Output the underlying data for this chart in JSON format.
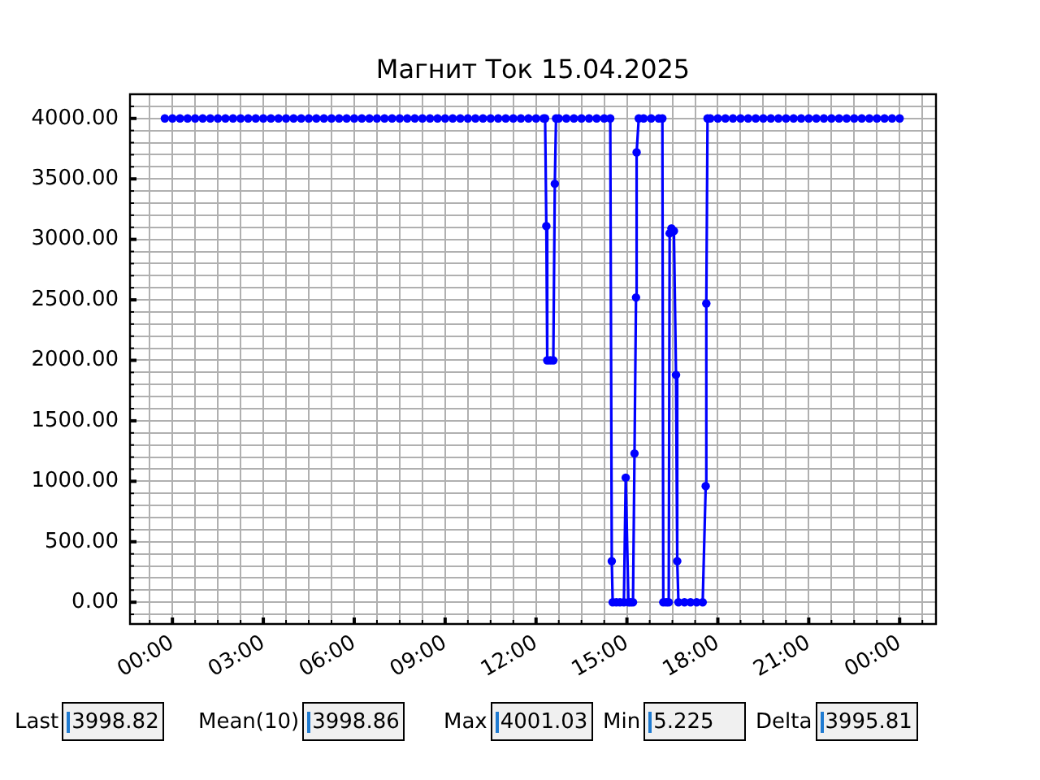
{
  "chart_data": {
    "type": "line",
    "title": "Магнит Ток 15.04.2025",
    "x": [
      -0.25,
      0,
      0.25,
      0.5,
      0.75,
      1,
      1.25,
      1.5,
      1.75,
      2,
      2.25,
      2.5,
      2.75,
      3,
      3.25,
      3.5,
      3.75,
      4,
      4.25,
      4.5,
      4.75,
      5,
      5.25,
      5.5,
      5.75,
      6,
      6.25,
      6.5,
      6.75,
      7,
      7.25,
      7.5,
      7.75,
      8,
      8.25,
      8.5,
      8.75,
      9,
      9.25,
      9.5,
      9.75,
      10,
      10.25,
      10.5,
      10.75,
      11,
      11.25,
      11.5,
      11.75,
      12,
      12.25,
      12.3,
      12.34,
      12.37,
      12.47,
      12.57,
      12.62,
      12.66,
      12.75,
      13,
      13.25,
      13.5,
      13.75,
      14,
      14.25,
      14.45,
      14.5,
      14.53,
      14.65,
      14.77,
      14.9,
      14.96,
      15.05,
      15.12,
      15.2,
      15.25,
      15.3,
      15.32,
      15.39,
      15.55,
      15.8,
      16.05,
      16.17,
      16.2,
      16.3,
      16.38,
      16.41,
      16.47,
      16.55,
      16.62,
      16.66,
      16.7,
      16.9,
      17.1,
      17.3,
      17.5,
      17.6,
      17.62,
      17.66,
      17.75,
      18,
      18.25,
      18.5,
      18.75,
      19,
      19.25,
      19.5,
      19.75,
      20,
      20.25,
      20.5,
      20.75,
      21,
      21.25,
      21.5,
      21.75,
      22,
      22.25,
      22.5,
      22.75,
      23,
      23.25,
      23.5,
      23.75,
      24
    ],
    "values": [
      4000,
      4000,
      4000,
      4000,
      4000,
      4000,
      4000,
      4000,
      4000,
      4000,
      4000,
      4000,
      4000,
      4000,
      4000,
      4000,
      4000,
      4000,
      4000,
      4000,
      4000,
      4000,
      4000,
      4000,
      4000,
      4000,
      4000,
      4000,
      4000,
      4000,
      4000,
      4000,
      4000,
      4000,
      4000,
      4000,
      4000,
      4000,
      4000,
      4000,
      4000,
      4000,
      4000,
      4000,
      4000,
      4000,
      4000,
      4000,
      4000,
      4000,
      4000,
      4000,
      3110,
      2000,
      2000,
      2000,
      3460,
      4000,
      4000,
      4000,
      4000,
      4000,
      4000,
      4000,
      4000,
      4000,
      340,
      0,
      0,
      0,
      0,
      1030,
      0,
      0,
      0,
      1230,
      2520,
      3720,
      4000,
      4000,
      4000,
      4000,
      4000,
      0,
      0,
      0,
      3050,
      3090,
      3070,
      1880,
      340,
      0,
      0,
      0,
      0,
      0,
      960,
      2470,
      4000,
      4000,
      4000,
      4000,
      4000,
      4000,
      4000,
      4000,
      4000,
      4000,
      4000,
      4000,
      4000,
      4000,
      4000,
      4000,
      4000,
      4000,
      4000,
      4000,
      4000,
      4000,
      4000,
      4000,
      4000,
      4000,
      4000
    ],
    "color": "#0000ff",
    "marker": "circle",
    "grid": true,
    "xlim": [
      -1.4,
      25.2
    ],
    "ylim": [
      -180,
      4200
    ],
    "xticks": [
      {
        "value": -0.75,
        "label": null
      },
      {
        "value": 0,
        "label": "00:00"
      },
      {
        "value": 0.75,
        "label": null
      },
      {
        "value": 1.5,
        "label": null
      },
      {
        "value": 2.25,
        "label": null
      },
      {
        "value": 3,
        "label": "03:00"
      },
      {
        "value": 3.75,
        "label": null
      },
      {
        "value": 4.5,
        "label": null
      },
      {
        "value": 5.25,
        "label": null
      },
      {
        "value": 6,
        "label": "06:00"
      },
      {
        "value": 6.75,
        "label": null
      },
      {
        "value": 7.5,
        "label": null
      },
      {
        "value": 8.25,
        "label": null
      },
      {
        "value": 9,
        "label": "09:00"
      },
      {
        "value": 9.75,
        "label": null
      },
      {
        "value": 10.5,
        "label": null
      },
      {
        "value": 11.25,
        "label": null
      },
      {
        "value": 12,
        "label": "12:00"
      },
      {
        "value": 12.75,
        "label": null
      },
      {
        "value": 13.5,
        "label": null
      },
      {
        "value": 14.25,
        "label": null
      },
      {
        "value": 15,
        "label": "15:00"
      },
      {
        "value": 15.75,
        "label": null
      },
      {
        "value": 16.5,
        "label": null
      },
      {
        "value": 17.25,
        "label": null
      },
      {
        "value": 18,
        "label": "18:00"
      },
      {
        "value": 18.75,
        "label": null
      },
      {
        "value": 19.5,
        "label": null
      },
      {
        "value": 20.25,
        "label": null
      },
      {
        "value": 21,
        "label": "21:00"
      },
      {
        "value": 21.75,
        "label": null
      },
      {
        "value": 22.5,
        "label": null
      },
      {
        "value": 23.25,
        "label": null
      },
      {
        "value": 24,
        "label": "00:00"
      },
      {
        "value": 24.75,
        "label": null
      }
    ],
    "yticks": [
      {
        "value": -100,
        "label": null
      },
      {
        "value": 0,
        "label": "0.00"
      },
      {
        "value": 100,
        "label": null
      },
      {
        "value": 200,
        "label": null
      },
      {
        "value": 300,
        "label": null
      },
      {
        "value": 400,
        "label": null
      },
      {
        "value": 500,
        "label": "500.00"
      },
      {
        "value": 600,
        "label": null
      },
      {
        "value": 700,
        "label": null
      },
      {
        "value": 800,
        "label": null
      },
      {
        "value": 900,
        "label": null
      },
      {
        "value": 1000,
        "label": "1000.00"
      },
      {
        "value": 1100,
        "label": null
      },
      {
        "value": 1200,
        "label": null
      },
      {
        "value": 1300,
        "label": null
      },
      {
        "value": 1400,
        "label": null
      },
      {
        "value": 1500,
        "label": "1500.00"
      },
      {
        "value": 1600,
        "label": null
      },
      {
        "value": 1700,
        "label": null
      },
      {
        "value": 1800,
        "label": null
      },
      {
        "value": 1900,
        "label": null
      },
      {
        "value": 2000,
        "label": "2000.00"
      },
      {
        "value": 2100,
        "label": null
      },
      {
        "value": 2200,
        "label": null
      },
      {
        "value": 2300,
        "label": null
      },
      {
        "value": 2400,
        "label": null
      },
      {
        "value": 2500,
        "label": "2500.00"
      },
      {
        "value": 2600,
        "label": null
      },
      {
        "value": 2700,
        "label": null
      },
      {
        "value": 2800,
        "label": null
      },
      {
        "value": 2900,
        "label": null
      },
      {
        "value": 3000,
        "label": "3000.00"
      },
      {
        "value": 3100,
        "label": null
      },
      {
        "value": 3200,
        "label": null
      },
      {
        "value": 3300,
        "label": null
      },
      {
        "value": 3400,
        "label": null
      },
      {
        "value": 3500,
        "label": "3500.00"
      },
      {
        "value": 3600,
        "label": null
      },
      {
        "value": 3700,
        "label": null
      },
      {
        "value": 3800,
        "label": null
      },
      {
        "value": 3900,
        "label": null
      },
      {
        "value": 4000,
        "label": "4000.00"
      },
      {
        "value": 4100,
        "label": null
      },
      {
        "value": 4200,
        "label": null
      }
    ],
    "annotations": [
      "Last",
      "3998.82",
      "Mean(10)",
      "3998.86",
      "Max",
      "4001.03",
      "Min",
      "5.225",
      "Delta",
      "3995.81"
    ]
  }
}
